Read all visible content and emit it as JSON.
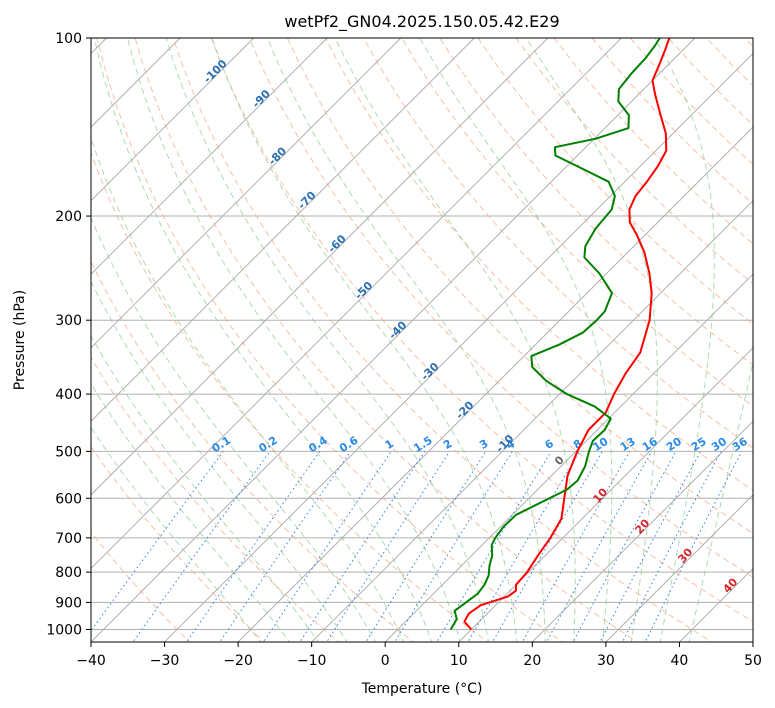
{
  "chart_data": {
    "type": "line",
    "title": "wetPf2_GN04.2025.150.05.42.E29",
    "xlabel": "Temperature (°C)",
    "ylabel": "Pressure (hPa)",
    "xlim": [
      -40,
      50
    ],
    "ylim": [
      1050,
      100
    ],
    "y_scale": "log",
    "grid": true,
    "x_ticks": [
      -40,
      -30,
      -20,
      -10,
      0,
      10,
      20,
      30,
      40,
      50
    ],
    "y_ticks": [
      100,
      200,
      300,
      400,
      500,
      600,
      700,
      800,
      900,
      1000
    ],
    "skew": true,
    "series": [
      {
        "role": "temperature",
        "color": "#ff0000",
        "points": [
          [
            1000,
            10.0
          ],
          [
            970,
            8.0
          ],
          [
            940,
            7.5
          ],
          [
            910,
            8.0
          ],
          [
            880,
            10.5
          ],
          [
            860,
            10.8
          ],
          [
            840,
            10.0
          ],
          [
            800,
            9.8
          ],
          [
            750,
            9.0
          ],
          [
            700,
            8.3
          ],
          [
            650,
            7.2
          ],
          [
            600,
            4.8
          ],
          [
            550,
            2.2
          ],
          [
            500,
            0.2
          ],
          [
            460,
            -1.2
          ],
          [
            430,
            -1.2
          ],
          [
            400,
            -2.6
          ],
          [
            370,
            -3.8
          ],
          [
            340,
            -4.7
          ],
          [
            300,
            -7.8
          ],
          [
            270,
            -11.2
          ],
          [
            250,
            -14.2
          ],
          [
            230,
            -17.8
          ],
          [
            215,
            -21.2
          ],
          [
            205,
            -23.8
          ],
          [
            195,
            -25.6
          ],
          [
            185,
            -26.6
          ],
          [
            175,
            -27.0
          ],
          [
            165,
            -27.6
          ],
          [
            155,
            -28.6
          ],
          [
            145,
            -31.0
          ],
          [
            135,
            -34.2
          ],
          [
            125,
            -37.6
          ],
          [
            118,
            -40.0
          ],
          [
            110,
            -41.4
          ],
          [
            104,
            -42.6
          ],
          [
            100,
            -43.5
          ]
        ]
      },
      {
        "role": "dewpoint",
        "color": "#008000",
        "points": [
          [
            1000,
            7.2
          ],
          [
            960,
            6.6
          ],
          [
            930,
            5.2
          ],
          [
            900,
            5.6
          ],
          [
            870,
            6.0
          ],
          [
            840,
            5.7
          ],
          [
            810,
            5.0
          ],
          [
            780,
            3.8
          ],
          [
            750,
            2.8
          ],
          [
            720,
            1.3
          ],
          [
            700,
            0.8
          ],
          [
            670,
            0.4
          ],
          [
            640,
            0.5
          ],
          [
            610,
            2.2
          ],
          [
            580,
            4.0
          ],
          [
            560,
            4.2
          ],
          [
            530,
            3.3
          ],
          [
            500,
            1.8
          ],
          [
            480,
            0.9
          ],
          [
            460,
            1.0
          ],
          [
            440,
            0.3
          ],
          [
            420,
            -3.5
          ],
          [
            400,
            -9.0
          ],
          [
            380,
            -13.6
          ],
          [
            360,
            -17.4
          ],
          [
            345,
            -19.0
          ],
          [
            330,
            -16.8
          ],
          [
            315,
            -15.2
          ],
          [
            300,
            -15.0
          ],
          [
            290,
            -15.1
          ],
          [
            270,
            -16.6
          ],
          [
            250,
            -21.0
          ],
          [
            235,
            -25.2
          ],
          [
            225,
            -26.6
          ],
          [
            210,
            -27.6
          ],
          [
            195,
            -28.0
          ],
          [
            185,
            -29.4
          ],
          [
            175,
            -32.2
          ],
          [
            165,
            -38.4
          ],
          [
            158,
            -43.0
          ],
          [
            153,
            -44.2
          ],
          [
            148,
            -39.8
          ],
          [
            142,
            -36.8
          ],
          [
            135,
            -38.5
          ],
          [
            128,
            -41.8
          ],
          [
            122,
            -43.4
          ],
          [
            115,
            -43.8
          ],
          [
            108,
            -44.0
          ],
          [
            103,
            -44.4
          ],
          [
            100,
            -44.8
          ]
        ]
      }
    ],
    "dry_adiabat_labels": [
      "-100",
      "-90",
      "-80",
      "-70",
      "-60",
      "-50",
      "-40",
      "-30",
      "-20",
      "-10"
    ],
    "mixing_ratio_labels": [
      "0.1",
      "0.2",
      "0.4",
      "0.6",
      "1",
      "1.5",
      "2",
      "3",
      "4",
      "6",
      "8",
      "10",
      "13",
      "16",
      "20",
      "25",
      "30",
      "36"
    ],
    "moist_adiabat_labels": [
      "0",
      "10",
      "20",
      "30",
      "40"
    ]
  }
}
